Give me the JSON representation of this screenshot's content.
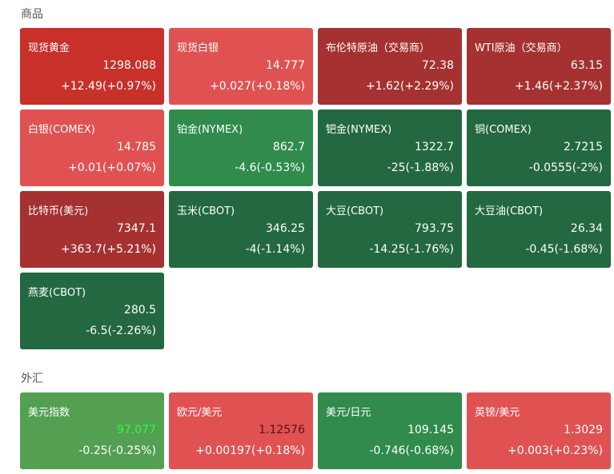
{
  "commodities": {
    "title": "商品",
    "tiles": [
      {
        "name": "现货黄金",
        "price": "1298.088",
        "change": "+12.49(+0.97%)",
        "color": "#c8302a"
      },
      {
        "name": "现货白银",
        "price": "14.777",
        "change": "+0.027(+0.18%)",
        "color": "#e05252"
      },
      {
        "name": "布伦特原油（交易商）",
        "price": "72.38",
        "change": "+1.62(+2.29%)",
        "color": "#a53131"
      },
      {
        "name": "WTI原油（交易商）",
        "price": "63.15",
        "change": "+1.46(+2.37%)",
        "color": "#a53131"
      },
      {
        "name": "白银(COMEX)",
        "price": "14.785",
        "change": "+0.01(+0.07%)",
        "color": "#e05252"
      },
      {
        "name": "铂金(NYMEX)",
        "price": "862.7",
        "change": "-4.6(-0.53%)",
        "color": "#308b4c"
      },
      {
        "name": "钯金(NYMEX)",
        "price": "1322.7",
        "change": "-25(-1.88%)",
        "color": "#236840"
      },
      {
        "name": "铜(COMEX)",
        "price": "2.7215",
        "change": "-0.0555(-2%)",
        "color": "#236840"
      },
      {
        "name": "比特币(美元)",
        "price": "7347.1",
        "change": "+363.7(+5.21%)",
        "color": "#a53131"
      },
      {
        "name": "玉米(CBOT)",
        "price": "346.25",
        "change": "-4(-1.14%)",
        "color": "#236840"
      },
      {
        "name": "大豆(CBOT)",
        "price": "793.75",
        "change": "-14.25(-1.76%)",
        "color": "#236840"
      },
      {
        "name": "大豆油(CBOT)",
        "price": "26.34",
        "change": "-0.45(-1.68%)",
        "color": "#236840"
      },
      {
        "name": "燕麦(CBOT)",
        "price": "280.5",
        "change": "-6.5(-2.26%)",
        "color": "#236840"
      }
    ]
  },
  "forex": {
    "title": "外汇",
    "tiles": [
      {
        "name": "美元指数",
        "price": "97.077",
        "change": "-0.25(-0.25%)",
        "color": "#53a053",
        "price_color": "#2eff3c"
      },
      {
        "name": "欧元/美元",
        "price": "1.12576",
        "change": "+0.00197(+0.18%)",
        "color": "#e05252",
        "price_color": "#5a0f0f"
      },
      {
        "name": "美元/日元",
        "price": "109.145",
        "change": "-0.746(-0.68%)",
        "color": "#308b4c"
      },
      {
        "name": "英镑/美元",
        "price": "1.3029",
        "change": "+0.003(+0.23%)",
        "color": "#e05252"
      }
    ]
  }
}
